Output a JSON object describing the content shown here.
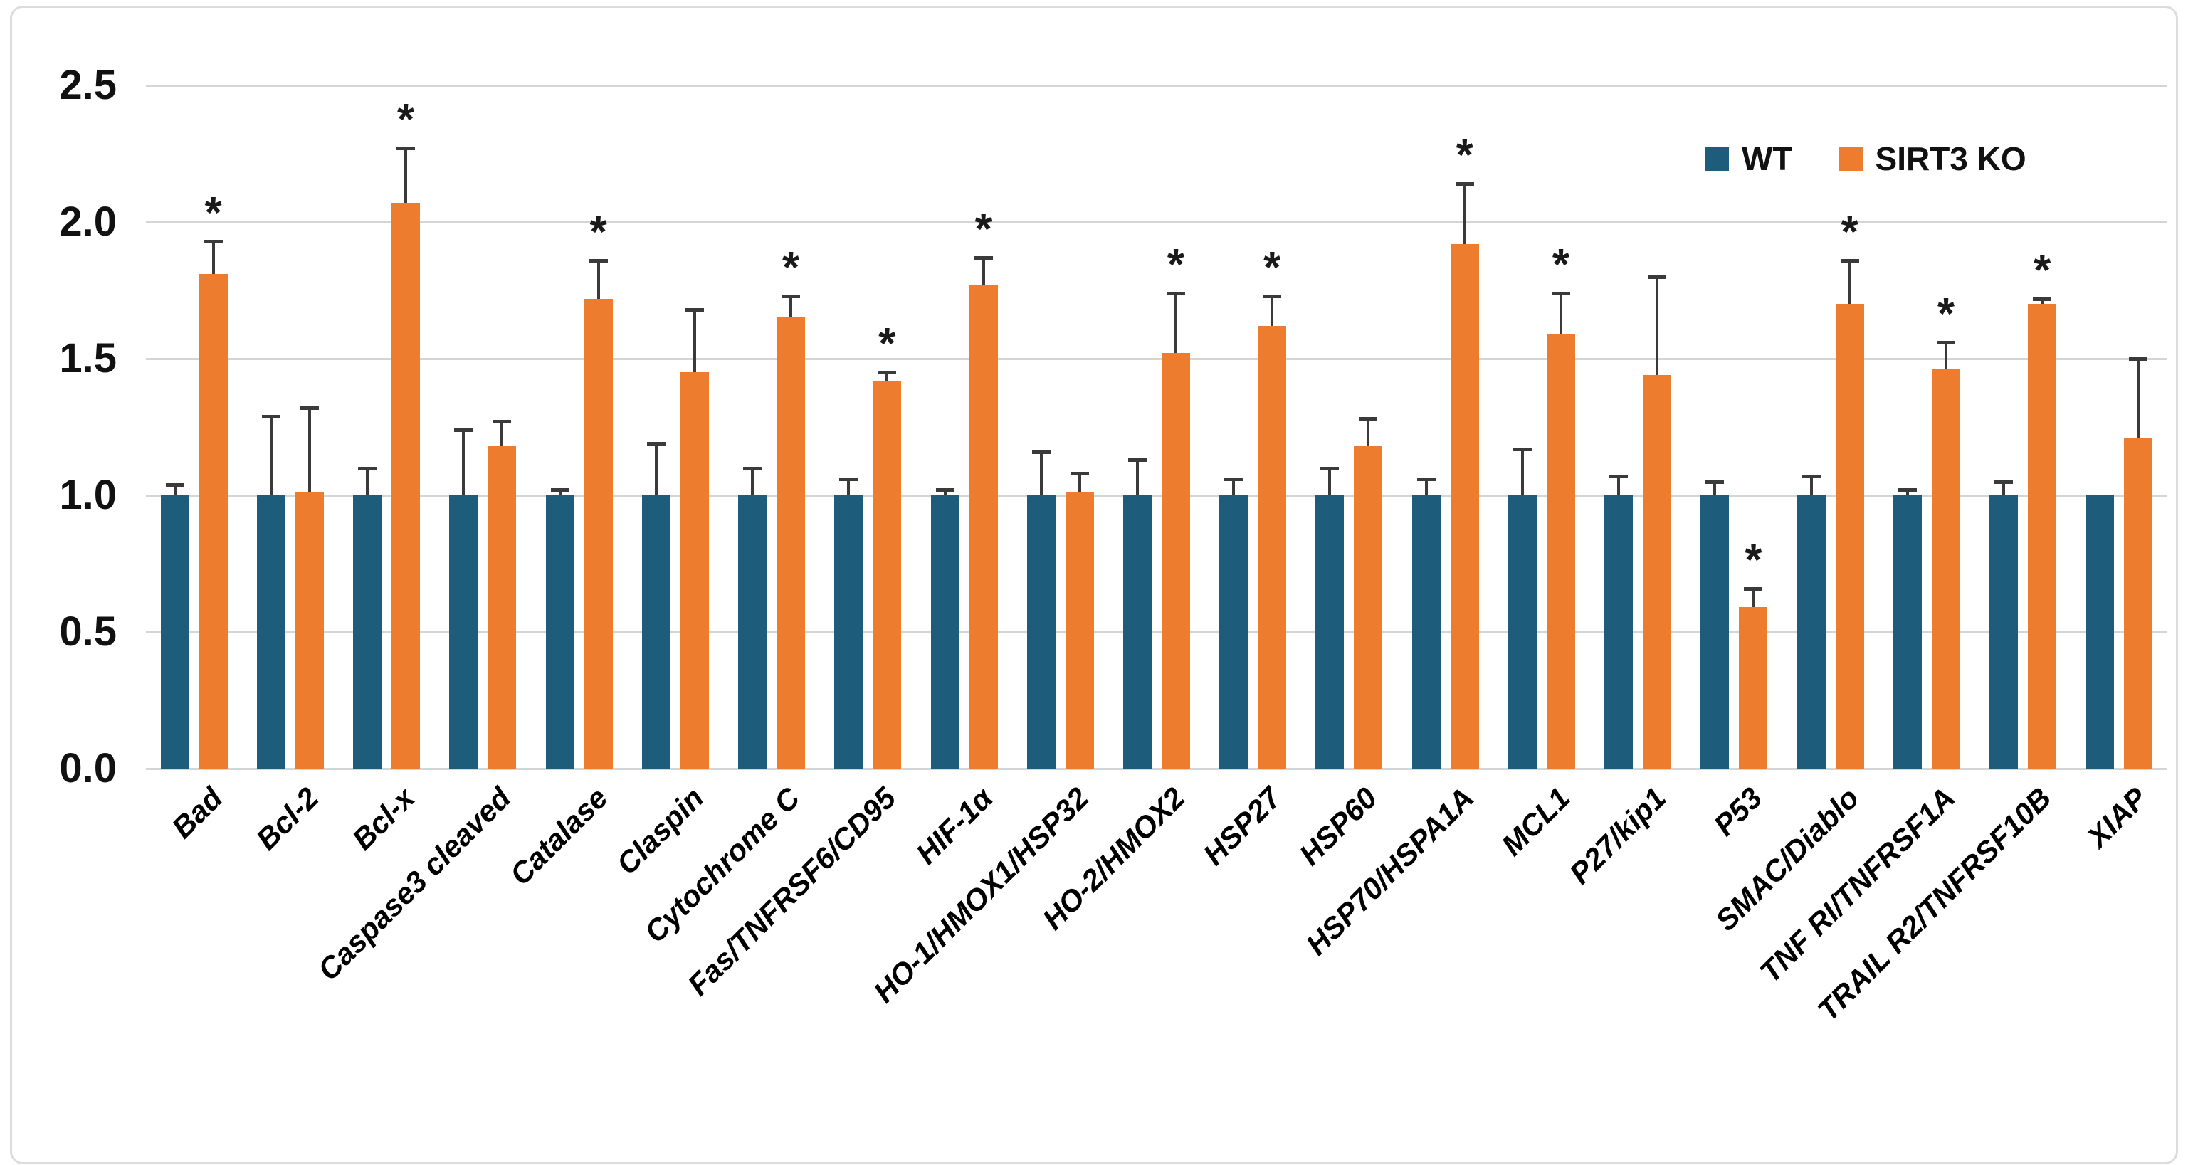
{
  "chart_data": {
    "type": "bar",
    "title": "",
    "xlabel": "",
    "ylabel": "",
    "ylim": [
      0,
      2.5
    ],
    "grid": true,
    "legend_position": "top-right",
    "y_ticks": [
      "0.0",
      "0.5",
      "1.0",
      "1.5",
      "2.0",
      "2.5"
    ],
    "categories": [
      "Bad",
      "Bcl-2",
      "Bcl-x",
      "Caspase3 cleaved",
      "Catalase",
      "Claspin",
      "Cytochrome C",
      "Fas/TNFRSF6/CD95",
      "HIF-1α",
      "HO-1/HMOX1/HSP32",
      "HO-2/HMOX2",
      "HSP27",
      "HSP60",
      "HSP70/HSPA1A",
      "MCL1",
      "P27/kip1",
      "P53",
      "SMAC/Diablo",
      "TNF RI/TNFRSF1A",
      "TRAIL R2/TNFRSF10B",
      "XIAP"
    ],
    "series": [
      {
        "name": "WT",
        "color": "#1E5C7B",
        "values": [
          1.0,
          1.0,
          1.0,
          1.0,
          1.0,
          1.0,
          1.0,
          1.0,
          1.0,
          1.0,
          1.0,
          1.0,
          1.0,
          1.0,
          1.0,
          1.0,
          1.0,
          1.0,
          1.0,
          1.0,
          1.0
        ],
        "err_top": [
          1.04,
          1.29,
          1.1,
          1.24,
          1.02,
          1.19,
          1.1,
          1.06,
          1.02,
          1.16,
          1.13,
          1.06,
          1.1,
          1.06,
          1.17,
          1.07,
          1.05,
          1.07,
          1.02,
          1.05,
          1.0
        ]
      },
      {
        "name": "SIRT3 KO",
        "color": "#EE7C2E",
        "values": [
          1.81,
          1.01,
          2.07,
          1.18,
          1.72,
          1.45,
          1.65,
          1.42,
          1.77,
          1.01,
          1.52,
          1.62,
          1.18,
          1.92,
          1.59,
          1.44,
          0.59,
          1.7,
          1.46,
          1.7,
          1.21
        ],
        "err_top": [
          1.93,
          1.32,
          2.27,
          1.27,
          1.86,
          1.68,
          1.73,
          1.45,
          1.87,
          1.08,
          1.74,
          1.73,
          1.28,
          2.14,
          1.74,
          1.8,
          0.66,
          1.86,
          1.56,
          1.72,
          1.5
        ]
      }
    ],
    "significance": {
      "symbol": "*",
      "on_series": "SIRT3 KO",
      "flags": [
        true,
        false,
        true,
        false,
        true,
        false,
        true,
        true,
        true,
        false,
        true,
        true,
        false,
        true,
        true,
        false,
        true,
        true,
        true,
        true,
        false
      ]
    }
  },
  "colors": {
    "background": "#ffffff",
    "border": "#dcdcdc",
    "gridline": "#d5d5d5",
    "error_bar": "#3a3a3a",
    "text": "#111111"
  }
}
